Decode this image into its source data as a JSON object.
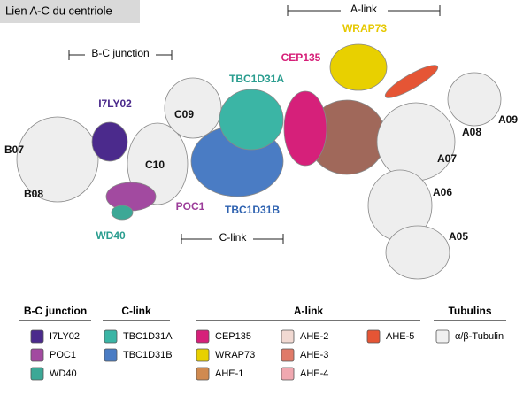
{
  "title": "Lien A-C du centriole",
  "brackets": [
    {
      "label": "A-link"
    },
    {
      "label": "B-C junction"
    },
    {
      "label": "C-link"
    }
  ],
  "labels": [
    {
      "text": "WRAP73",
      "color": "#e6c800"
    },
    {
      "text": "CEP135",
      "color": "#d61f78"
    },
    {
      "text": "TBC1D31A",
      "color": "#2a9d8f"
    },
    {
      "text": "I7LY02",
      "color": "#4b2a8c"
    },
    {
      "text": "C09",
      "color": "#111111"
    },
    {
      "text": "B07",
      "color": "#111111"
    },
    {
      "text": "C10",
      "color": "#111111"
    },
    {
      "text": "B08",
      "color": "#111111"
    },
    {
      "text": "POC1",
      "color": "#9c3d9a"
    },
    {
      "text": "TBC1D31B",
      "color": "#2e62b0"
    },
    {
      "text": "WD40",
      "color": "#2a9d8f"
    },
    {
      "text": "A09",
      "color": "#111111"
    },
    {
      "text": "A08",
      "color": "#111111"
    },
    {
      "text": "A07",
      "color": "#111111"
    },
    {
      "text": "A06",
      "color": "#111111"
    },
    {
      "text": "A05",
      "color": "#111111"
    }
  ],
  "legend": {
    "groups": [
      {
        "title": "B-C junction",
        "items": [
          {
            "label": "I7LY02",
            "color": "#4b2a8c"
          },
          {
            "label": "POC1",
            "color": "#a24aa0"
          },
          {
            "label": "WD40",
            "color": "#3ca896"
          }
        ]
      },
      {
        "title": "C-link",
        "items": [
          {
            "label": "TBC1D31A",
            "color": "#3bb5a5"
          },
          {
            "label": "TBC1D31B",
            "color": "#4a7cc4"
          }
        ]
      },
      {
        "title": "A-link",
        "items": [
          {
            "label": "CEP135",
            "color": "#d6207a"
          },
          {
            "label": "WRAP73",
            "color": "#e8d000"
          },
          {
            "label": "AHE-1",
            "color": "#d08a50"
          },
          {
            "label": "AHE-2",
            "color": "#f1d9d2"
          },
          {
            "label": "AHE-3",
            "color": "#e07a68"
          },
          {
            "label": "AHE-4",
            "color": "#f0a8b0"
          },
          {
            "label": "AHE-5",
            "color": "#e55535"
          }
        ]
      },
      {
        "title": "Tubulins",
        "items": [
          {
            "label": "α/β-Tubulin",
            "color": "#f0f0f0"
          }
        ]
      }
    ]
  }
}
